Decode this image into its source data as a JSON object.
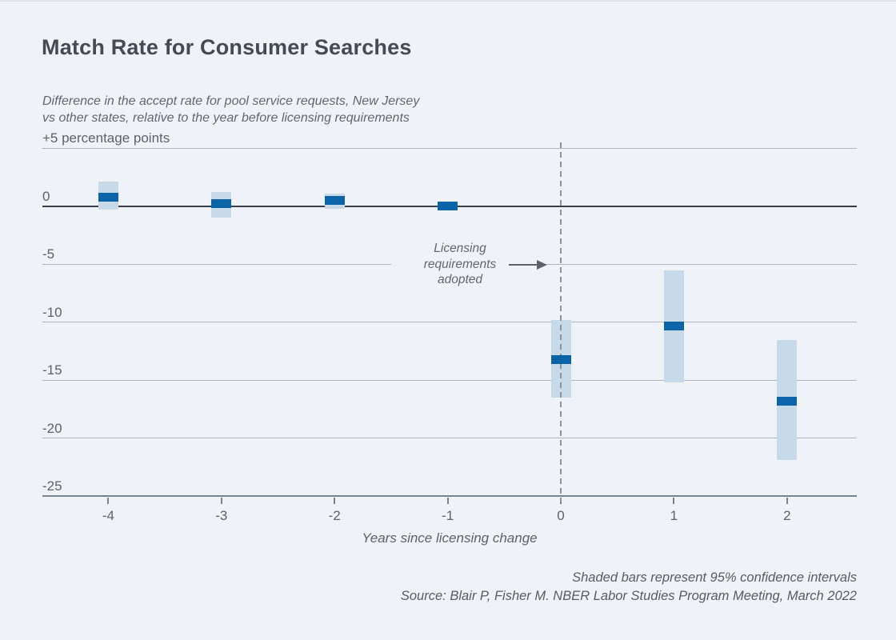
{
  "header": {
    "title": "Match Rate for Consumer Searches",
    "subtitle_line1": "Difference in the accept rate for pool service requests, New Jersey",
    "subtitle_line2": "vs other states, relative to the year before licensing requirements"
  },
  "annotation": {
    "lines": [
      "Licensing",
      "requirements",
      "adopted"
    ],
    "arrow_icon": "right-arrow-icon"
  },
  "footer": {
    "note": "Shaded bars represent 95% confidence intervals",
    "source": "Source: Blair P, Fisher M. NBER Labor Studies Program Meeting, March 2022"
  },
  "colors": {
    "background": "#eff3f7",
    "point_estimate_bar": "#0c64a8",
    "confidence_band": "#c7dae9",
    "gridline": "#aeb5bb",
    "zero_line": "#383e44",
    "bottom_axis": "#7b8289",
    "dashed_reference_line": "#8d949a",
    "title_text": "#454b51",
    "axis_text": "#5d6268"
  },
  "chart_data": {
    "type": "scatter",
    "subtype": "event-study point estimates with shaded 95% confidence bands",
    "title": "Match Rate for Consumer Searches",
    "xlabel": "Years since licensing change",
    "ylabel": "percentage points",
    "x": [
      -4,
      -3,
      -2,
      -1,
      0,
      1,
      2
    ],
    "estimates": [
      0.8,
      0.2,
      0.5,
      0.0,
      -13.2,
      -10.3,
      -16.8
    ],
    "ci_low": [
      -0.3,
      -1.0,
      -0.2,
      0.0,
      -16.5,
      -15.2,
      -21.9
    ],
    "ci_high": [
      2.1,
      1.2,
      1.1,
      0.0,
      -9.8,
      -5.5,
      -11.5
    ],
    "reference_year": -1,
    "dashed_reference_line_x": 0,
    "ylim": [
      -25,
      5
    ],
    "y_gridlines": [
      5,
      0,
      -5,
      -10,
      -15,
      -20,
      -25
    ],
    "y_tick_labels": [
      "+5 percentage points",
      "0",
      "-5",
      "-10",
      "-15",
      "-20",
      "-25"
    ],
    "x_ticks": [
      -4,
      -3,
      -2,
      -1,
      0,
      1,
      2
    ],
    "x_tick_labels": [
      "-4",
      "-3",
      "-2",
      "-1",
      "0",
      "1",
      "2"
    ],
    "grid": true,
    "legend": "none"
  }
}
